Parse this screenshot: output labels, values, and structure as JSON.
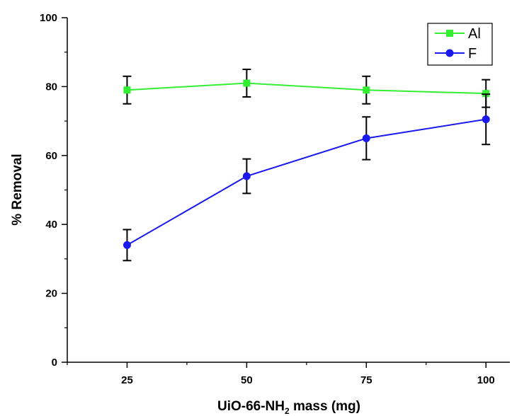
{
  "chart_data": {
    "type": "line",
    "title": "",
    "xlabel": {
      "main": "UiO-66-NH",
      "sub": "2",
      "rest": " mass (mg)"
    },
    "ylabel": "% Removal",
    "x": [
      25,
      50,
      75,
      100
    ],
    "xticks": [
      "25",
      "50",
      "75",
      "100"
    ],
    "yticks": [
      "0",
      "20",
      "40",
      "60",
      "80",
      "100"
    ],
    "xlim": [
      12.5,
      105
    ],
    "ylim": [
      0,
      100
    ],
    "grid": false,
    "legend_position": "top-right",
    "series": [
      {
        "name": "Al",
        "color": "#33ee33",
        "marker": "square",
        "values": [
          79,
          81,
          79,
          78
        ],
        "error": [
          4,
          4,
          4,
          4
        ]
      },
      {
        "name": "F",
        "color": "#1a1aee",
        "marker": "circle",
        "values": [
          34,
          54,
          65,
          70.5
        ],
        "error": [
          4.5,
          5,
          6.2,
          7.3
        ]
      }
    ]
  }
}
